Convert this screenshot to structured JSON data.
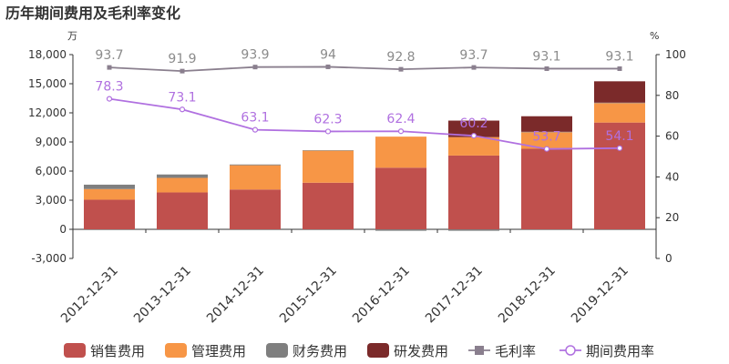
{
  "chart_data": {
    "type": "bar",
    "title": "历年期间费用及毛利率变化",
    "left_unit": "万",
    "right_unit": "%",
    "categories": [
      "2012-12-31",
      "2013-12-31",
      "2014-12-31",
      "2015-12-31",
      "2016-12-31",
      "2017-12-31",
      "2018-12-31",
      "2019-12-31"
    ],
    "y_left": {
      "min": -3000,
      "max": 18000,
      "ticks": [
        -3000,
        0,
        3000,
        6000,
        9000,
        12000,
        15000,
        18000
      ],
      "tick_labels": [
        "-3,000",
        "0",
        "3,000",
        "6,000",
        "9,000",
        "12,000",
        "15,000",
        "18,000"
      ]
    },
    "y_right": {
      "min": 0,
      "max": 100,
      "ticks": [
        0,
        20,
        40,
        60,
        80,
        100
      ],
      "tick_labels": [
        "0",
        "20",
        "40",
        "60",
        "80",
        "100"
      ]
    },
    "stacked_series": [
      {
        "name": "销售费用",
        "color": "#c0504d",
        "values": [
          3050,
          3800,
          4100,
          4800,
          6350,
          7600,
          8300,
          11000
        ]
      },
      {
        "name": "管理费用",
        "color": "#f79646",
        "values": [
          1100,
          1500,
          2500,
          3300,
          3200,
          1900,
          1700,
          2000
        ]
      },
      {
        "name": "财务费用",
        "color": "#7f7f7f",
        "values": [
          450,
          350,
          80,
          50,
          -150,
          -150,
          50,
          50
        ]
      },
      {
        "name": "研发费用",
        "color": "#7b2a2a",
        "values": [
          0,
          0,
          0,
          0,
          0,
          1700,
          1600,
          2200
        ]
      }
    ],
    "line_series": [
      {
        "name": "毛利率",
        "color": "#8a7f8e",
        "values": [
          93.7,
          91.9,
          93.9,
          94,
          92.8,
          93.7,
          93.1,
          93.1
        ],
        "labels": [
          "93.7",
          "91.9",
          "93.9",
          "94",
          "92.8",
          "93.7",
          "93.1",
          "93.1"
        ]
      },
      {
        "name": "期间费用率",
        "color": "#b070e0",
        "values": [
          78.3,
          73.1,
          63.1,
          62.3,
          62.4,
          60.2,
          53.7,
          54.1
        ],
        "labels": [
          "78.3",
          "73.1",
          "63.1",
          "62.3",
          "62.4",
          "60.2",
          "53.7",
          "54.1"
        ]
      }
    ],
    "legend_position": "bottom",
    "grid": false
  }
}
